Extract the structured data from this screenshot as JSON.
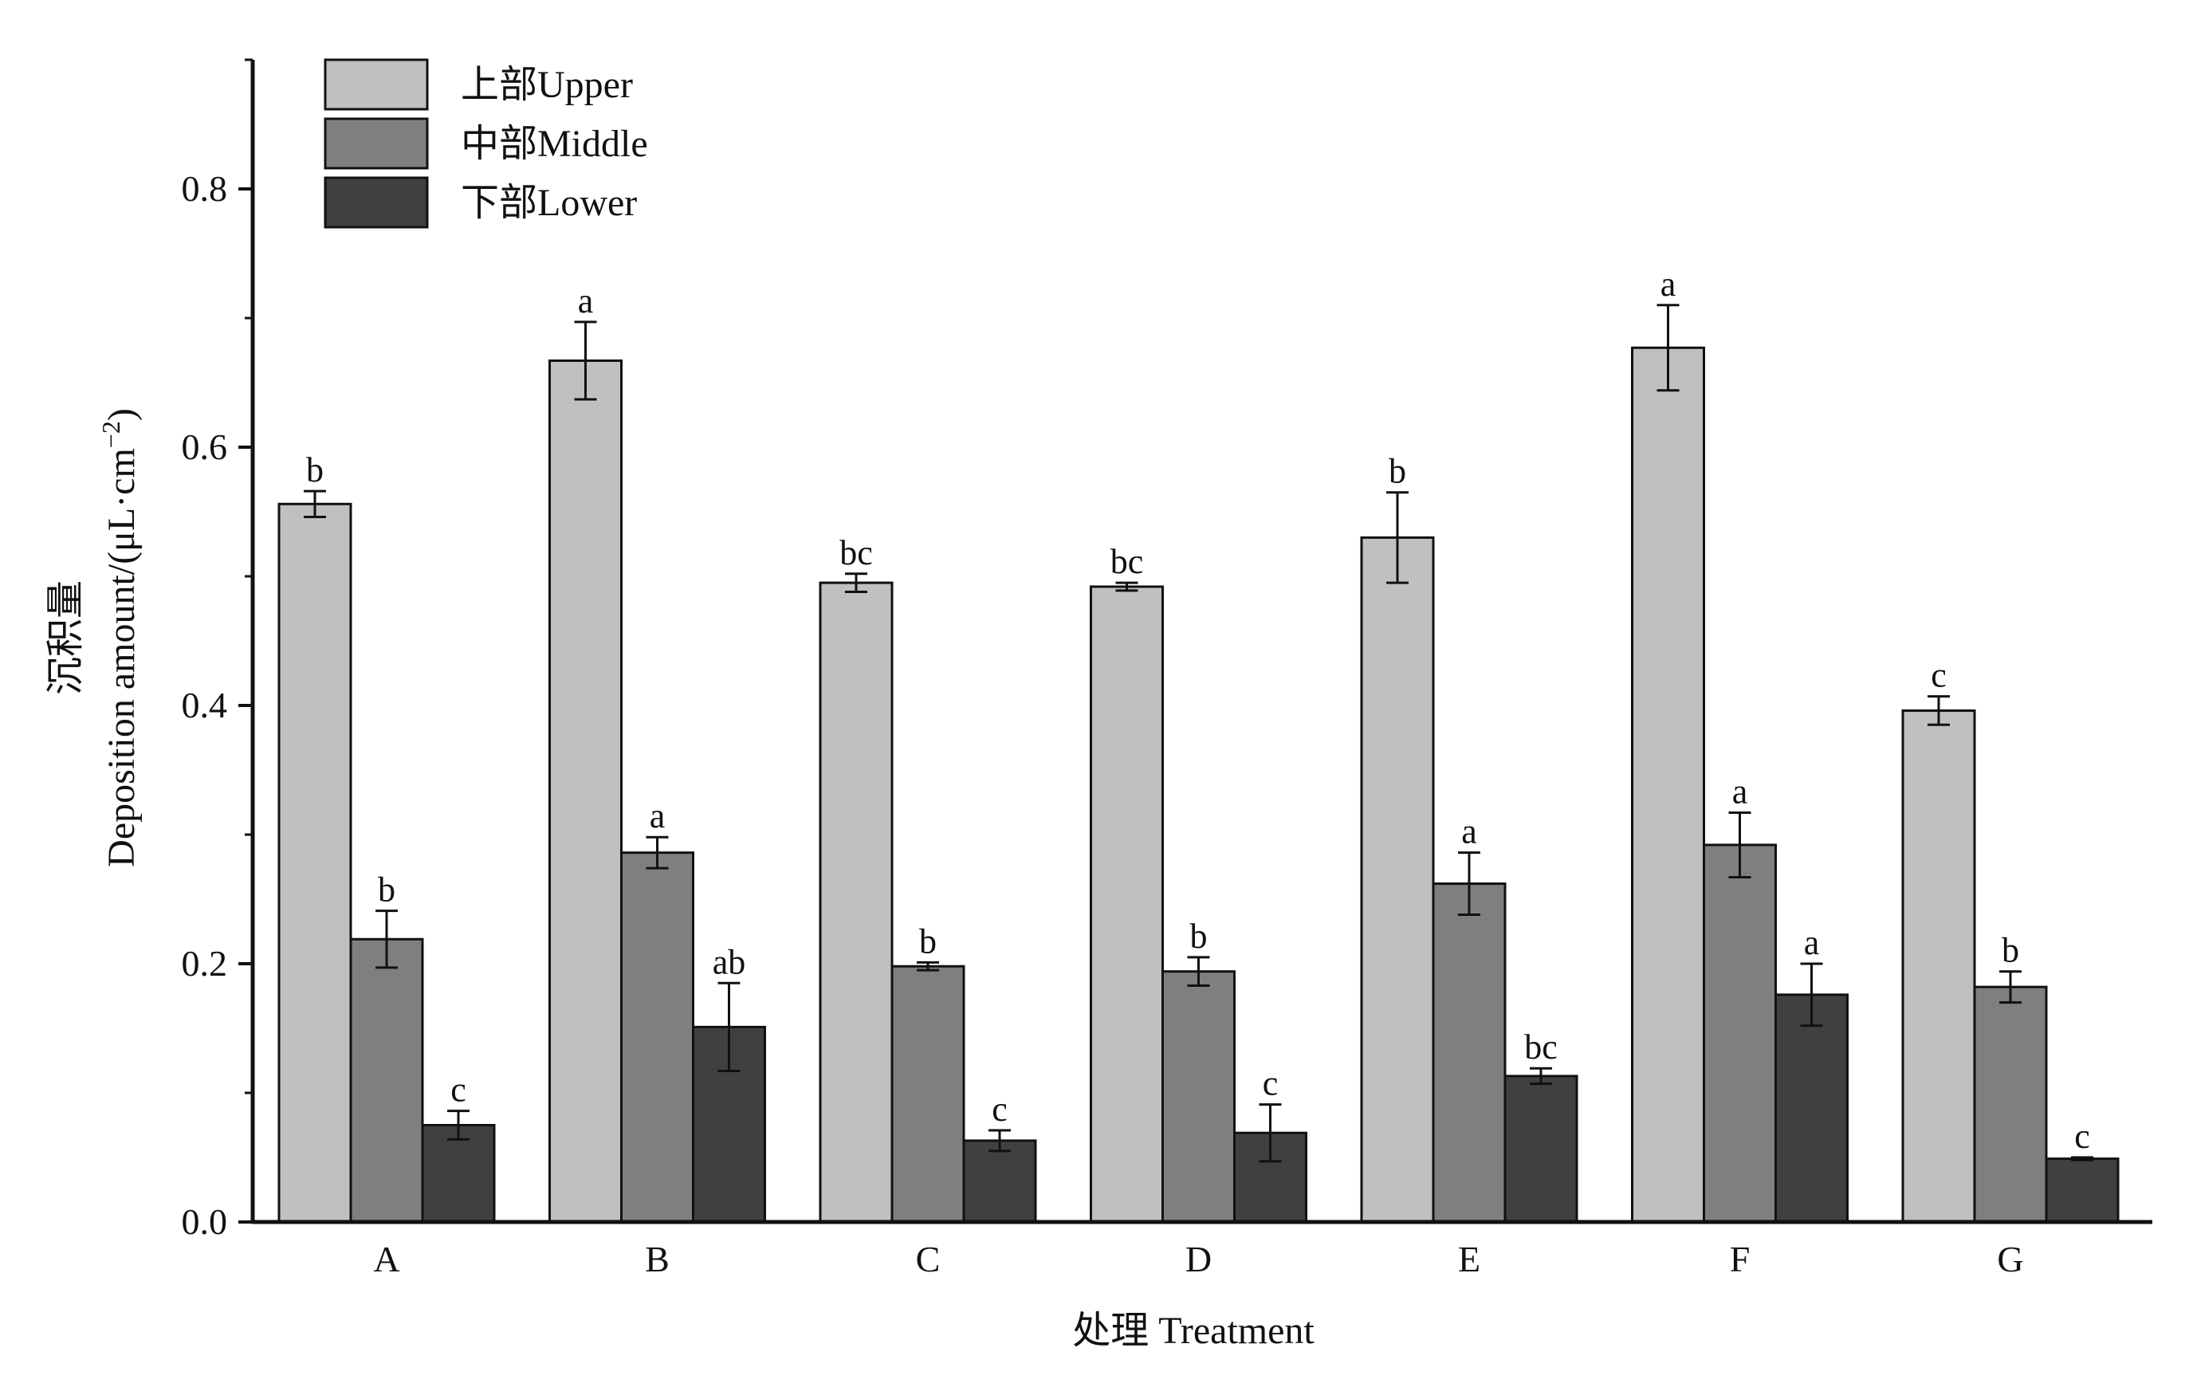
{
  "chart_data": {
    "type": "bar",
    "title": "",
    "xlabel": "处理 Treatment",
    "ylabel_cn": "沉积量",
    "ylabel_en": "Deposition amount/(μL·cm",
    "ylabel_sup": "−2",
    "ylabel_close": ")",
    "ylim": [
      0,
      0.9
    ],
    "yticks": [
      "0.0",
      "0.2",
      "0.4",
      "0.6",
      "0.8"
    ],
    "ytick_values": [
      0.0,
      0.2,
      0.4,
      0.6,
      0.8
    ],
    "categories": [
      "A",
      "B",
      "C",
      "D",
      "E",
      "F",
      "G"
    ],
    "legend_position": "top-left",
    "grid": false,
    "series": [
      {
        "name": "上部Upper",
        "color": "#c0c0c0",
        "values": [
          0.556,
          0.667,
          0.495,
          0.492,
          0.53,
          0.677,
          0.396
        ],
        "errors": [
          0.01,
          0.03,
          0.007,
          0.003,
          0.035,
          0.033,
          0.011
        ],
        "labels": [
          "b",
          "a",
          "bc",
          "bc",
          "b",
          "a",
          "c"
        ]
      },
      {
        "name": "中部Middle",
        "color": "#7f7f7f",
        "values": [
          0.219,
          0.286,
          0.198,
          0.194,
          0.262,
          0.292,
          0.182
        ],
        "errors": [
          0.022,
          0.012,
          0.003,
          0.011,
          0.024,
          0.025,
          0.012
        ],
        "labels": [
          "b",
          "a",
          "b",
          "b",
          "a",
          "a",
          "b"
        ]
      },
      {
        "name": "下部Lower",
        "color": "#404040",
        "values": [
          0.075,
          0.151,
          0.063,
          0.069,
          0.113,
          0.176,
          0.049
        ],
        "errors": [
          0.011,
          0.034,
          0.008,
          0.022,
          0.006,
          0.024,
          0.001
        ],
        "labels": [
          "c",
          "ab",
          "c",
          "c",
          "bc",
          "a",
          "c"
        ]
      }
    ]
  }
}
